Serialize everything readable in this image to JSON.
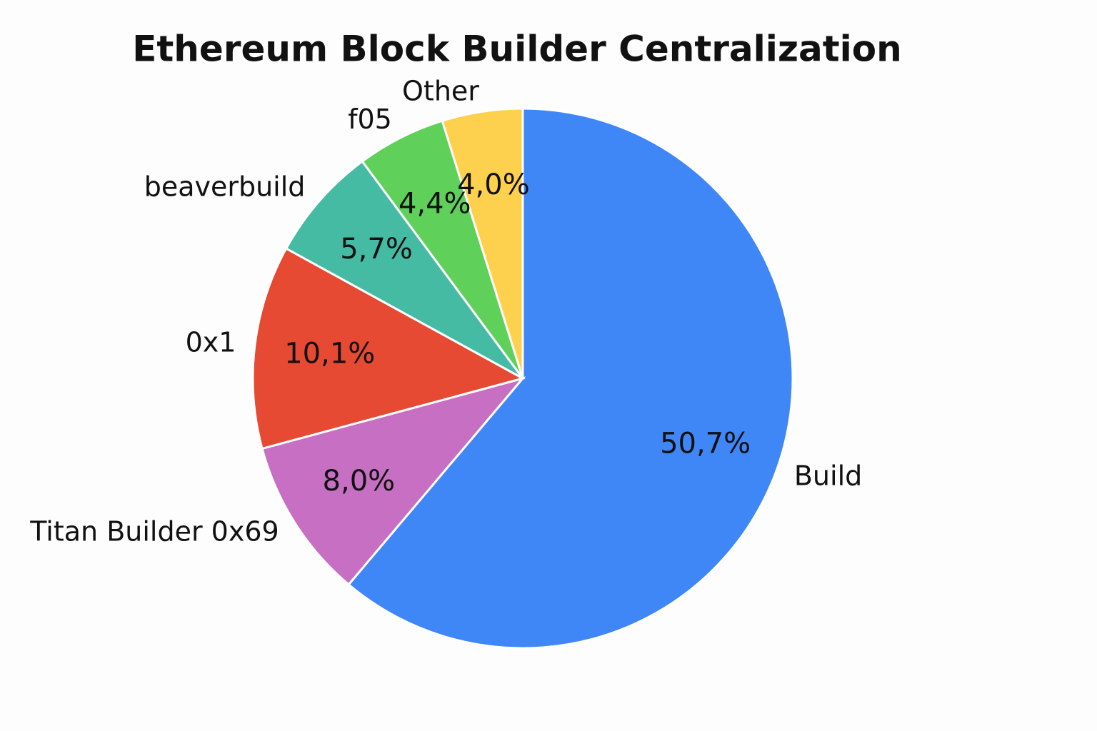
{
  "chart_data": {
    "type": "pie",
    "title": "Ethereum Block Builder Centralization",
    "categories": [
      "Build",
      "Titan Builder 0x69",
      "0x1",
      "beaverbuild",
      "f05",
      "Other"
    ],
    "values": [
      50.7,
      8.0,
      10.1,
      5.7,
      4.4,
      4.0
    ],
    "value_labels": [
      "50,7%",
      "8,0%",
      "10,1%",
      "5,7%",
      "4,4%",
      "4,0%"
    ],
    "colors": [
      "#3f86f7",
      "#c76fc2",
      "#e64a32",
      "#46bba3",
      "#5fd15a",
      "#fdd14d"
    ]
  }
}
